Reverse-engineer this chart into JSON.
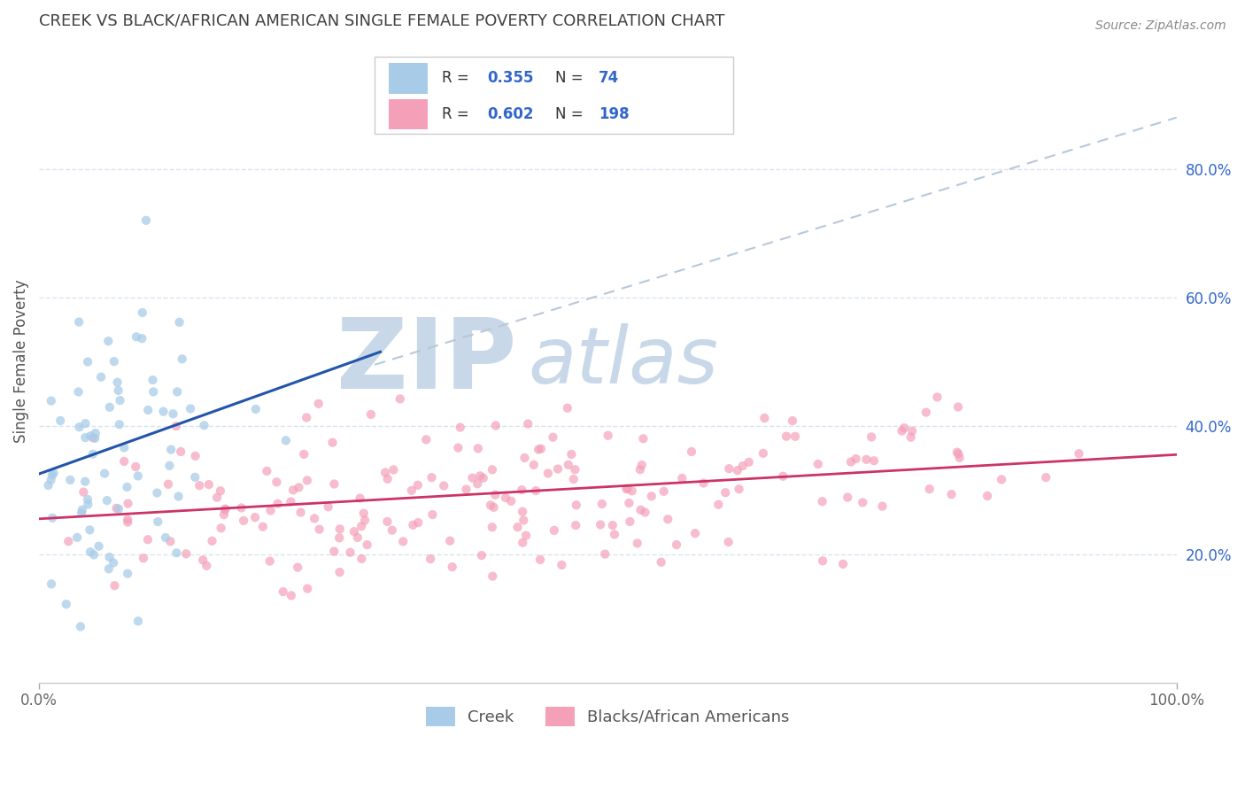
{
  "title": "CREEK VS BLACK/AFRICAN AMERICAN SINGLE FEMALE POVERTY CORRELATION CHART",
  "source": "Source: ZipAtlas.com",
  "ylabel": "Single Female Poverty",
  "creek_R": 0.355,
  "creek_N": 74,
  "black_R": 0.602,
  "black_N": 198,
  "xlim": [
    0,
    1.0
  ],
  "ylim": [
    0,
    1.0
  ],
  "yticks_right": [
    0.2,
    0.4,
    0.6,
    0.8
  ],
  "yticklabels_right": [
    "20.0%",
    "40.0%",
    "60.0%",
    "80.0%"
  ],
  "creek_color": "#a8cce8",
  "black_color": "#f4a0b8",
  "creek_line_color": "#2255aa",
  "black_line_color": "#cc3366",
  "dash_line_color": "#b8c8d8",
  "watermark_zip_color": "#c8d8e8",
  "watermark_atlas_color": "#c8d8e8",
  "grid_color": "#d8e4f0",
  "title_color": "#404040",
  "source_color": "#888888",
  "legend_text_color": "#3366cc",
  "background_color": "#ffffff",
  "figsize": [
    14.06,
    8.92
  ],
  "dpi": 100,
  "creek_line_x": [
    0.0,
    0.3
  ],
  "creek_line_y": [
    0.325,
    0.515
  ],
  "black_line_x": [
    0.0,
    1.0
  ],
  "black_line_y": [
    0.255,
    0.355
  ],
  "dash_line_x": [
    0.295,
    1.0
  ],
  "dash_line_y": [
    0.495,
    0.88
  ]
}
